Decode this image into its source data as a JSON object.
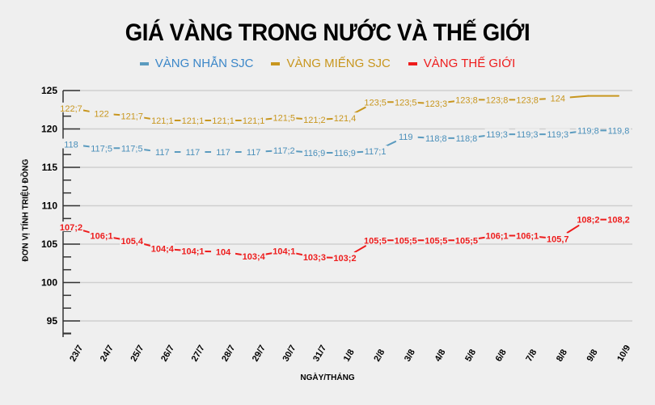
{
  "title": "GIÁ VÀNG TRONG NƯỚC VÀ THẾ GIỚI",
  "legend": [
    {
      "label": "VÀNG NHẪN SJC",
      "color": "#5b9bbf",
      "text_color": "#3a86c8"
    },
    {
      "label": "VÀNG MIẾNG SJC",
      "color": "#c8961e",
      "text_color": "#c8961e"
    },
    {
      "label": "VÀNG THẾ GIỚI",
      "color": "#ee1c1c",
      "text_color": "#ee1c1c"
    }
  ],
  "axes": {
    "ylabel": "ĐƠN VỊ TÍNH TRIỆU ĐỒNG",
    "xlabel": "NGÀY/THÁNG"
  },
  "chart_data": {
    "type": "line",
    "title": "GIÁ VÀNG TRONG NƯỚC VÀ THẾ GIỚI",
    "xlabel": "NGÀY/THÁNG",
    "ylabel": "ĐƠN VỊ TÍNH TRIỆU ĐỒNG",
    "ylim": [
      93,
      125
    ],
    "yticks": [
      95,
      100,
      105,
      110,
      115,
      120,
      125
    ],
    "grid": true,
    "legend_position": "top",
    "categories": [
      "23/7",
      "24/7",
      "25/7",
      "26/7",
      "27/7",
      "28/7",
      "29/7",
      "30/7",
      "31/7",
      "1/8",
      "2/8",
      "3/8",
      "4/8",
      "5/8",
      "6/8",
      "7/8",
      "8/8",
      "9/8",
      "10/9"
    ],
    "series": [
      {
        "name": "VÀNG NHẪN SJC",
        "color": "#5b9bbf",
        "values": [
          118,
          117.5,
          117.5,
          117,
          117,
          117,
          117,
          117.2,
          116.9,
          116.9,
          117.1,
          119,
          118.8,
          118.8,
          119.3,
          119.3,
          119.3,
          119.8,
          119.8
        ],
        "labels": [
          "118",
          "117;5",
          "117;5",
          "117",
          "117",
          "117",
          "117",
          "117;2",
          "116;9",
          "116;9",
          "117;1",
          "119",
          "118;8",
          "118;8",
          "119;3",
          "119;3",
          "119;3",
          "119;8",
          "119,8"
        ]
      },
      {
        "name": "VÀNG MIẾNG SJC",
        "color": "#c8961e",
        "values": [
          122.7,
          122,
          121.7,
          121.1,
          121.1,
          121.1,
          121.1,
          121.5,
          121.2,
          121.4,
          123.5,
          123.5,
          123.3,
          123.8,
          123.8,
          123.8,
          124,
          124.3,
          124.3
        ],
        "labels": [
          "122;7",
          "122",
          "121;7",
          "121;1",
          "121;1",
          "121;1",
          "121;1",
          "121;5",
          "121;2",
          "121,4",
          "123;5",
          "123;5",
          "123;3",
          "123;8",
          "123;8",
          "123;8",
          "124",
          "",
          ""
        ]
      },
      {
        "name": "VÀNG THẾ GIỚI",
        "color": "#ee1c1c",
        "values": [
          107.2,
          106.1,
          105.4,
          104.4,
          104.1,
          104,
          103.4,
          104.1,
          103.3,
          103.2,
          105.5,
          105.5,
          105.5,
          105.5,
          106.1,
          106.1,
          105.7,
          108.2,
          108.2
        ],
        "labels": [
          "107;2",
          "106;1",
          "105,4",
          "104;4",
          "104;1",
          "104",
          "103;4",
          "104;1",
          "103;3",
          "103;2",
          "105;5",
          "105;5",
          "105;5",
          "105;5",
          "106;1",
          "106;1",
          "105,7",
          "108;2",
          "108,2"
        ]
      }
    ]
  }
}
